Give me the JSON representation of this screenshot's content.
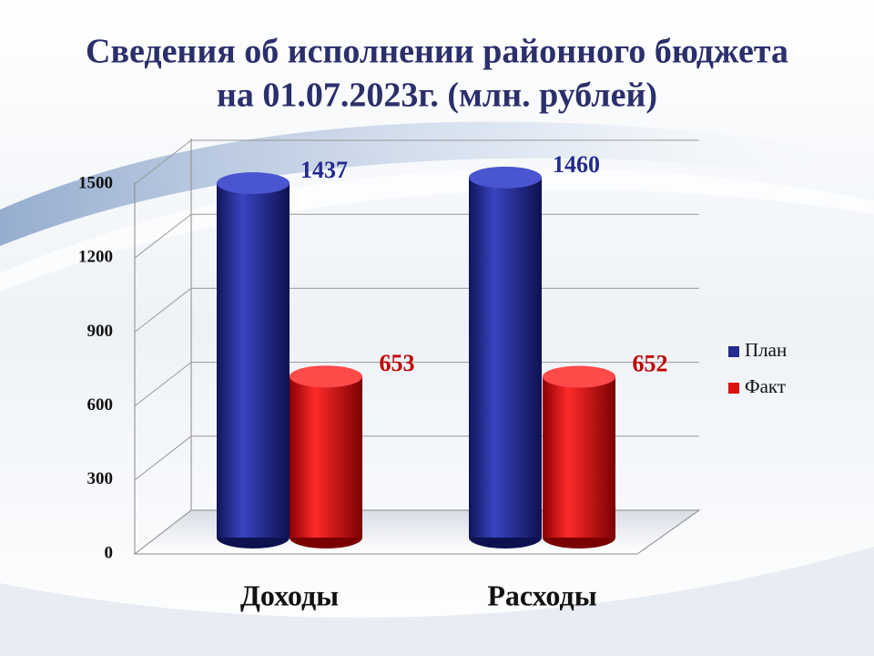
{
  "chart_data": {
    "type": "bar3d",
    "title": [
      "Сведения об исполнении районного бюджета",
      "на 01.07.2023г. (млн. рублей)"
    ],
    "categories": [
      "Доходы",
      "Расходы"
    ],
    "series": [
      {
        "name": "План",
        "color": "#232b8f",
        "values": [
          1437,
          1460
        ]
      },
      {
        "name": "Факт",
        "color": "#e01010",
        "values": [
          653,
          652
        ]
      }
    ],
    "ylim": [
      0,
      1500
    ],
    "yticks": [
      0,
      300,
      600,
      900,
      1200,
      1500
    ],
    "grid": true,
    "legend": "right"
  }
}
